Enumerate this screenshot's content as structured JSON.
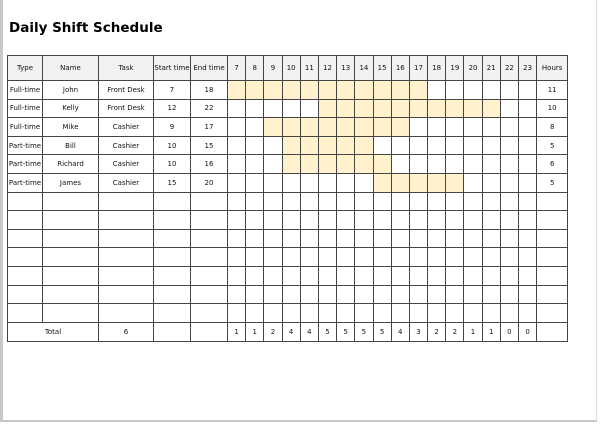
{
  "title": "Daily Shift Schedule",
  "headers": {
    "type": "Type",
    "name": "Name",
    "task": "Task",
    "start": "Start time",
    "end": "End time",
    "hours": "Hours"
  },
  "hour_columns": [
    "7",
    "8",
    "9",
    "10",
    "11",
    "12",
    "13",
    "14",
    "15",
    "16",
    "17",
    "18",
    "19",
    "20",
    "21",
    "22",
    "23"
  ],
  "rows": [
    {
      "type": "Full-time",
      "name": "John",
      "task": "Front Desk",
      "start": "7",
      "end": "18",
      "hours": "11"
    },
    {
      "type": "Full-time",
      "name": "Kelly",
      "task": "Front Desk",
      "start": "12",
      "end": "22",
      "hours": "10"
    },
    {
      "type": "Full-time",
      "name": "Mike",
      "task": "Cashier",
      "start": "9",
      "end": "17",
      "hours": "8"
    },
    {
      "type": "Part-time",
      "name": "Bill",
      "task": "Cashier",
      "start": "10",
      "end": "15",
      "hours": "5"
    },
    {
      "type": "Part-time",
      "name": "Richard",
      "task": "Cashier",
      "start": "10",
      "end": "16",
      "hours": "6"
    },
    {
      "type": "Part-time",
      "name": "James",
      "task": "Cashier",
      "start": "15",
      "end": "20",
      "hours": "5"
    }
  ],
  "empty_rows": 7,
  "total": {
    "label": "Total",
    "count": "6",
    "per_hour": [
      "1",
      "1",
      "2",
      "4",
      "4",
      "5",
      "5",
      "5",
      "5",
      "4",
      "3",
      "2",
      "2",
      "1",
      "1",
      "0",
      "0"
    ]
  },
  "colors": {
    "shift_fill": "#fff2cc",
    "header_fill": "#f2f2f2"
  }
}
